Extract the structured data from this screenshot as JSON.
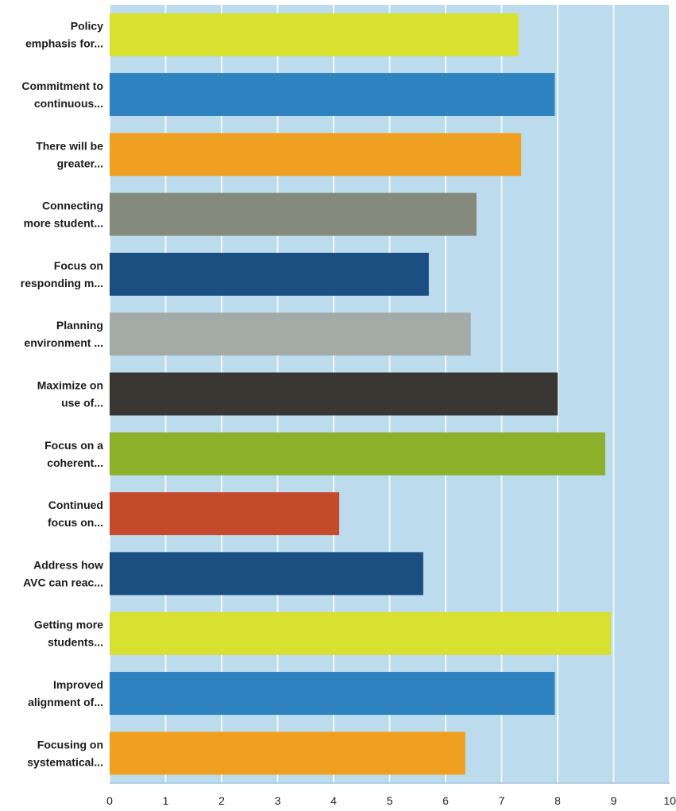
{
  "chart_data": {
    "type": "bar",
    "orientation": "horizontal",
    "title": "",
    "xlabel": "",
    "ylabel": "",
    "xlim": [
      0,
      10
    ],
    "ticks": [
      "0",
      "1",
      "2",
      "3",
      "4",
      "5",
      "6",
      "7",
      "8",
      "9",
      "10"
    ],
    "grid": true,
    "legend": "none",
    "bars": [
      {
        "label_lines": [
          "Policy",
          "emphasis for..."
        ],
        "value": 7.3,
        "color": "#d8e030"
      },
      {
        "label_lines": [
          "Commitment to",
          "continuous..."
        ],
        "value": 7.95,
        "color": "#2e82c0"
      },
      {
        "label_lines": [
          "There will be",
          "greater..."
        ],
        "value": 7.35,
        "color": "#f0a020"
      },
      {
        "label_lines": [
          "Connecting",
          "more student..."
        ],
        "value": 6.55,
        "color": "#848a7c"
      },
      {
        "label_lines": [
          "Focus on",
          "responding m..."
        ],
        "value": 5.7,
        "color": "#1b4f82"
      },
      {
        "label_lines": [
          "Planning",
          "environment ..."
        ],
        "value": 6.45,
        "color": "#a4aaa6"
      },
      {
        "label_lines": [
          "Maximize on",
          "use of..."
        ],
        "value": 8.0,
        "color": "#3a3632"
      },
      {
        "label_lines": [
          "Focus on a",
          "coherent..."
        ],
        "value": 8.85,
        "color": "#8cb02a"
      },
      {
        "label_lines": [
          "Continued",
          "focus on..."
        ],
        "value": 4.1,
        "color": "#c44a2c"
      },
      {
        "label_lines": [
          "Address how",
          "AVC can reac..."
        ],
        "value": 5.6,
        "color": "#1b4f82"
      },
      {
        "label_lines": [
          "Getting more",
          "students..."
        ],
        "value": 8.95,
        "color": "#d8e030"
      },
      {
        "label_lines": [
          "Improved",
          "alignment of..."
        ],
        "value": 7.95,
        "color": "#2e82c0"
      },
      {
        "label_lines": [
          "Focusing on",
          "systematical..."
        ],
        "value": 6.35,
        "color": "#f0a020"
      }
    ],
    "plot_background": "#bcdcee"
  }
}
